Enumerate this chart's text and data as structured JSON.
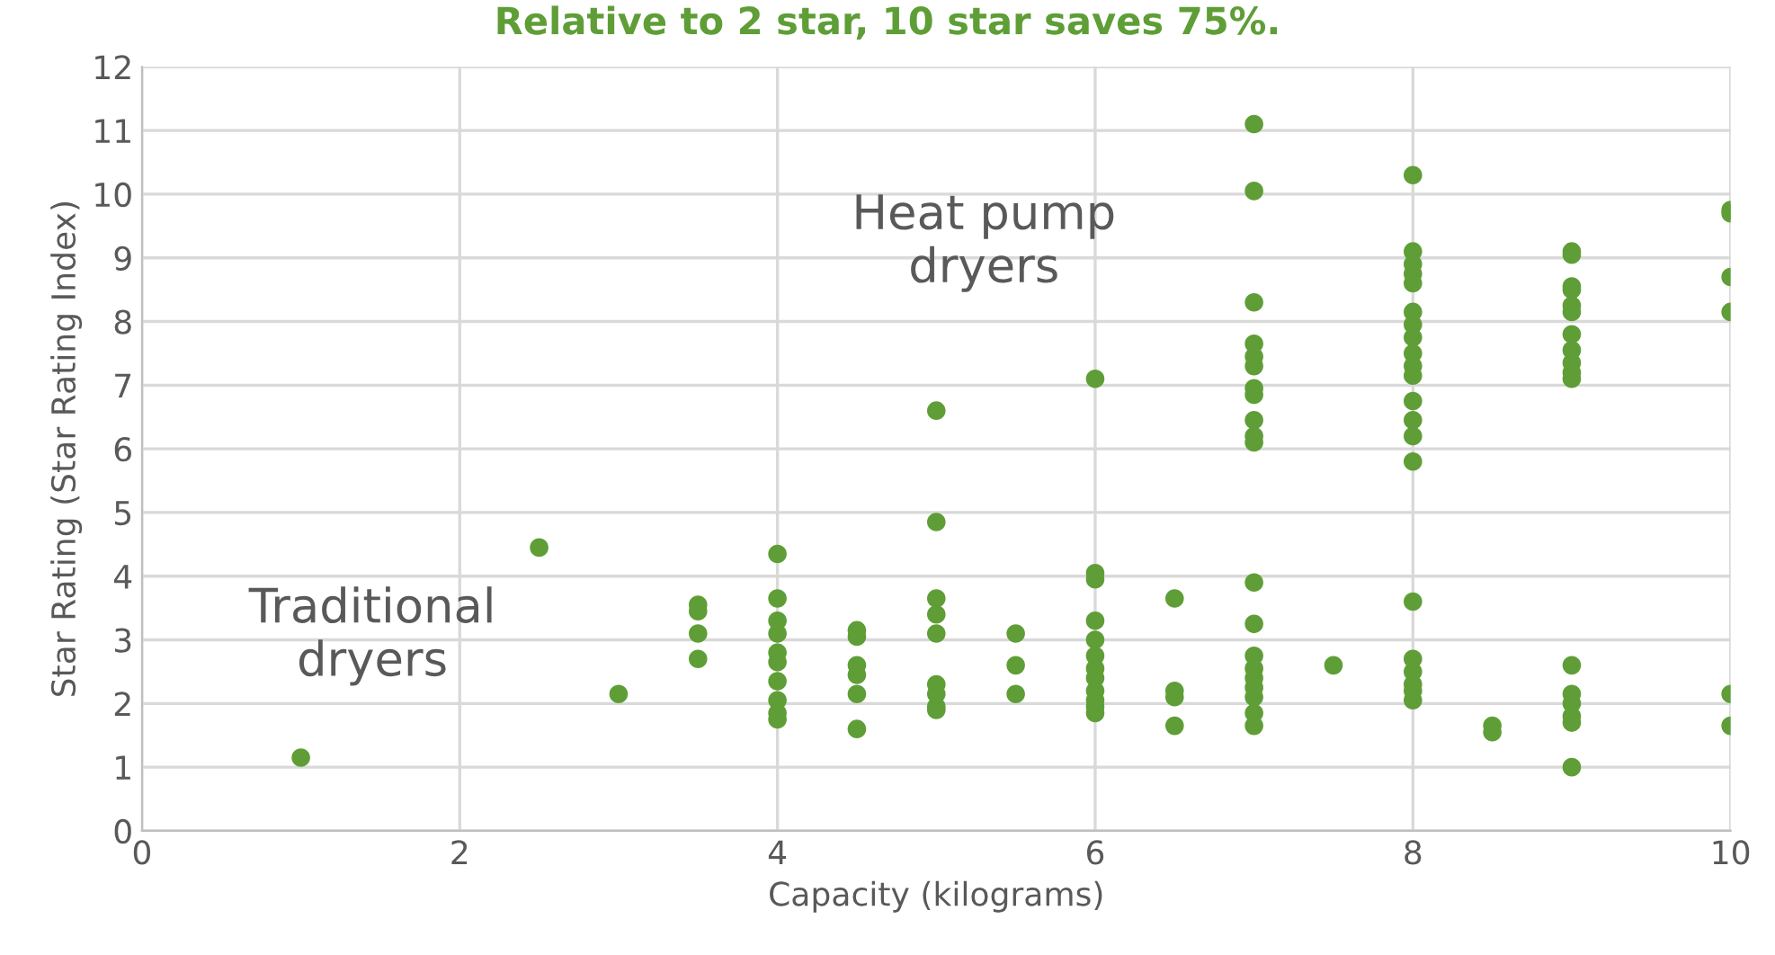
{
  "chart_data": {
    "type": "scatter",
    "title": "Relative to 2 star, 10 star saves 75%.",
    "xlabel": "Capacity (kilograms)",
    "ylabel": "Star Rating (Star Rating Index)",
    "x": [
      1,
      2.5,
      3,
      3.5,
      3.5,
      3.5,
      3.5,
      4,
      4,
      4,
      4,
      4,
      4,
      4,
      4,
      4,
      4,
      4.5,
      4.5,
      4.5,
      4.5,
      4.5,
      4.5,
      5,
      5,
      5,
      5,
      5,
      5,
      5,
      5,
      5,
      5.5,
      5.5,
      5.5,
      6,
      6,
      6,
      6,
      6,
      6,
      6,
      6,
      6,
      6,
      6,
      6,
      6.5,
      6.5,
      6.5,
      6.5,
      7,
      7,
      7,
      7,
      7,
      7,
      7,
      7,
      7,
      7,
      7,
      7,
      7,
      7,
      7,
      7,
      7,
      7,
      7,
      7,
      7.5,
      8,
      8,
      8,
      8,
      8,
      8,
      8,
      8,
      8,
      8,
      8,
      8,
      8,
      8,
      8,
      8,
      8,
      8,
      8,
      8,
      8,
      8.5,
      8.5,
      9,
      9,
      9,
      9,
      9,
      9,
      9,
      9,
      9,
      9,
      9,
      9,
      9,
      9,
      9,
      9,
      9,
      10,
      10,
      10,
      10,
      10,
      10
    ],
    "values": [
      1.15,
      4.45,
      2.15,
      3.55,
      3.45,
      3.1,
      2.7,
      4.35,
      3.65,
      3.3,
      3.1,
      2.8,
      2.65,
      2.35,
      2.05,
      1.85,
      1.75,
      3.15,
      3.05,
      2.6,
      2.45,
      2.15,
      1.6,
      6.6,
      4.85,
      3.65,
      3.4,
      3.1,
      2.3,
      2.15,
      1.95,
      1.9,
      3.1,
      2.6,
      2.15,
      7.1,
      4.05,
      3.95,
      3.3,
      3.0,
      2.75,
      2.55,
      2.4,
      2.2,
      2.05,
      1.95,
      1.85,
      3.65,
      2.2,
      2.1,
      1.65,
      11.1,
      10.05,
      8.3,
      7.65,
      7.45,
      7.3,
      6.95,
      6.85,
      6.45,
      6.2,
      6.1,
      3.9,
      3.25,
      2.75,
      2.55,
      2.4,
      2.25,
      2.1,
      1.85,
      1.65,
      2.6,
      10.3,
      9.1,
      8.9,
      8.75,
      8.6,
      8.15,
      7.95,
      7.75,
      7.5,
      7.3,
      7.15,
      6.75,
      6.45,
      6.2,
      5.8,
      3.6,
      2.7,
      2.5,
      2.3,
      2.2,
      2.05,
      1.65,
      1.55,
      9.1,
      9.05,
      8.55,
      8.5,
      8.25,
      8.15,
      7.8,
      7.55,
      7.35,
      7.2,
      7.1,
      2.6,
      2.15,
      2.0,
      1.8,
      1.7,
      1.0,
      9.75,
      9.7,
      8.7,
      8.15,
      2.15,
      1.65
    ],
    "color": "#5f9e37",
    "marker": "circle",
    "xlim": [
      0,
      10
    ],
    "xticks": [
      0,
      2,
      4,
      6,
      8,
      10
    ],
    "ylim": [
      0,
      12
    ],
    "yticks": [
      0,
      1,
      2,
      3,
      4,
      5,
      6,
      7,
      8,
      9,
      10,
      11,
      12
    ],
    "grid": true,
    "annotations": [
      "Heat pump\ndryers",
      "Traditional\ndryers"
    ]
  }
}
